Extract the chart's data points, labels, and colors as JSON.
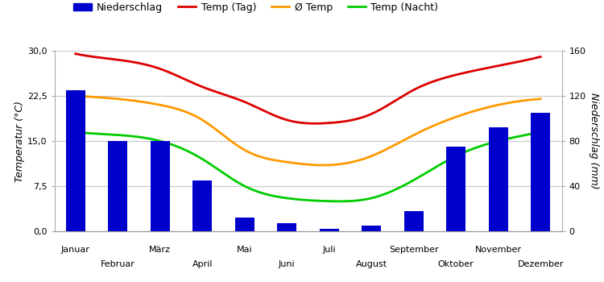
{
  "months": [
    "Januar",
    "Februar",
    "März",
    "April",
    "Mai",
    "Juni",
    "Juli",
    "August",
    "September",
    "Oktober",
    "November",
    "Dezember"
  ],
  "precipitation": [
    125,
    80,
    80,
    45,
    12,
    7,
    2,
    5,
    18,
    75,
    92,
    105
  ],
  "temp_day": [
    29.5,
    28.5,
    27.0,
    24.0,
    21.5,
    18.5,
    18.0,
    19.5,
    23.5,
    26.0,
    27.5,
    29.0
  ],
  "temp_avg": [
    22.5,
    22.0,
    21.0,
    18.5,
    13.5,
    11.5,
    11.0,
    12.5,
    16.0,
    19.0,
    21.0,
    22.0
  ],
  "temp_night": [
    16.5,
    16.0,
    15.0,
    12.0,
    7.5,
    5.5,
    5.0,
    5.5,
    8.5,
    12.5,
    15.0,
    16.5
  ],
  "bar_color": "#0000cc",
  "line_day_color": "#dd0000",
  "line_avg_color": "#ff9900",
  "line_night_color": "#00cc00",
  "legend_labels": [
    "Niederschlag",
    "Temp (Tag)",
    "Ø Temp",
    "Temp (Nacht)"
  ],
  "ylabel_left": "Temperatur (°C)",
  "ylabel_right": "Niederschlag (mm)",
  "ylim_left": [
    0,
    30
  ],
  "ylim_right": [
    0,
    160
  ],
  "yticks_left": [
    0.0,
    7.5,
    15.0,
    22.5,
    30.0
  ],
  "yticks_right": [
    0,
    40,
    80,
    120,
    160
  ],
  "background_color": "#ffffff",
  "grid_color": "#c8c8c8"
}
